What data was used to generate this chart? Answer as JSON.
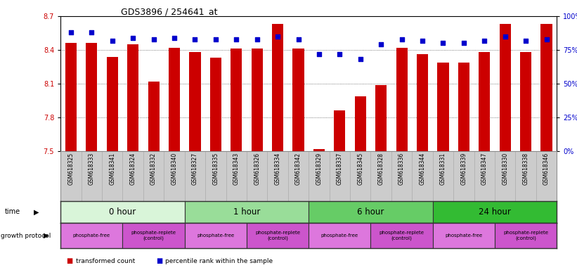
{
  "title": "GDS3896 / 254641_at",
  "samples": [
    "GSM618325",
    "GSM618333",
    "GSM618341",
    "GSM618324",
    "GSM618332",
    "GSM618340",
    "GSM618327",
    "GSM618335",
    "GSM618343",
    "GSM618326",
    "GSM618334",
    "GSM618342",
    "GSM618329",
    "GSM618337",
    "GSM618345",
    "GSM618328",
    "GSM618336",
    "GSM618344",
    "GSM618331",
    "GSM618339",
    "GSM618347",
    "GSM618330",
    "GSM618338",
    "GSM618346"
  ],
  "transformed_count": [
    8.46,
    8.46,
    8.34,
    8.45,
    8.12,
    8.42,
    8.38,
    8.33,
    8.41,
    8.41,
    8.63,
    8.41,
    7.52,
    7.86,
    7.99,
    8.09,
    8.42,
    8.36,
    8.29,
    8.29,
    8.38,
    8.63,
    8.38,
    8.63
  ],
  "percentile_rank": [
    88,
    88,
    82,
    84,
    83,
    84,
    83,
    83,
    83,
    83,
    85,
    83,
    72,
    72,
    68,
    79,
    83,
    82,
    80,
    80,
    82,
    85,
    82,
    83
  ],
  "ylim_left": [
    7.5,
    8.7
  ],
  "ylim_right": [
    0,
    100
  ],
  "yticks_left": [
    7.5,
    7.8,
    8.1,
    8.4,
    8.7
  ],
  "yticks_right": [
    0,
    25,
    50,
    75,
    100
  ],
  "bar_color": "#cc0000",
  "dot_color": "#0000cc",
  "time_groups": [
    {
      "label": "0 hour",
      "start": 0,
      "end": 6,
      "color": "#d9f5d9"
    },
    {
      "label": "1 hour",
      "start": 6,
      "end": 12,
      "color": "#99dd99"
    },
    {
      "label": "6 hour",
      "start": 12,
      "end": 18,
      "color": "#66cc66"
    },
    {
      "label": "24 hour",
      "start": 18,
      "end": 24,
      "color": "#33bb33"
    }
  ],
  "protocol_groups": [
    {
      "label": "phosphate-free",
      "start": 0,
      "end": 3,
      "color": "#dd77dd"
    },
    {
      "label": "phosphate-replete\n(control)",
      "start": 3,
      "end": 6,
      "color": "#cc55cc"
    },
    {
      "label": "phosphate-free",
      "start": 6,
      "end": 9,
      "color": "#dd77dd"
    },
    {
      "label": "phosphate-replete\n(control)",
      "start": 9,
      "end": 12,
      "color": "#cc55cc"
    },
    {
      "label": "phosphate-free",
      "start": 12,
      "end": 15,
      "color": "#dd77dd"
    },
    {
      "label": "phosphate-replete\n(control)",
      "start": 15,
      "end": 18,
      "color": "#cc55cc"
    },
    {
      "label": "phosphate-free",
      "start": 18,
      "end": 21,
      "color": "#dd77dd"
    },
    {
      "label": "phosphate-replete\n(control)",
      "start": 21,
      "end": 24,
      "color": "#cc55cc"
    }
  ],
  "bg_color": "#ffffff",
  "axis_color_left": "#cc0000",
  "axis_color_right": "#0000cc",
  "grid_color": "#888888",
  "sample_label_bg": "#cccccc",
  "bar_width": 0.55
}
